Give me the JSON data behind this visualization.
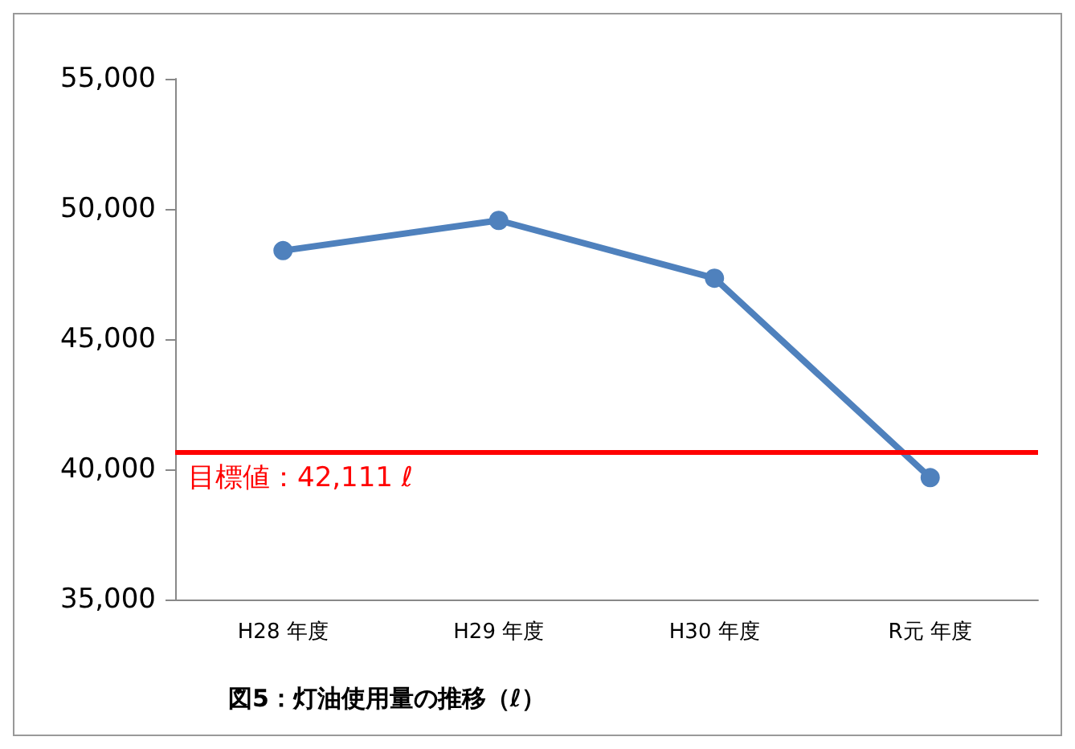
{
  "chart_data": {
    "type": "line",
    "title": "図5：灯油使用量の推移（ℓ）",
    "categories": [
      "H28 年度",
      "H29 年度",
      "H30 年度",
      "R元 年度"
    ],
    "series": [
      {
        "color": "#4f81bd",
        "values": [
          48400,
          49560,
          47340,
          39680
        ]
      }
    ],
    "ylim": [
      35000,
      55000
    ],
    "yticks": [
      {
        "value": 35000,
        "label": "35,000"
      },
      {
        "value": 40000,
        "label": "40,000"
      },
      {
        "value": 45000,
        "label": "45,000"
      },
      {
        "value": 50000,
        "label": "50,000"
      },
      {
        "value": 55000,
        "label": "55,000"
      }
    ],
    "ref_lines": [
      {
        "axis": "y",
        "value": 40670,
        "label": "目標値：42,111 ℓ",
        "color": "#ff0000",
        "line_style": "solid"
      }
    ],
    "grid": false,
    "marker": "circle",
    "line_style": "solid"
  }
}
